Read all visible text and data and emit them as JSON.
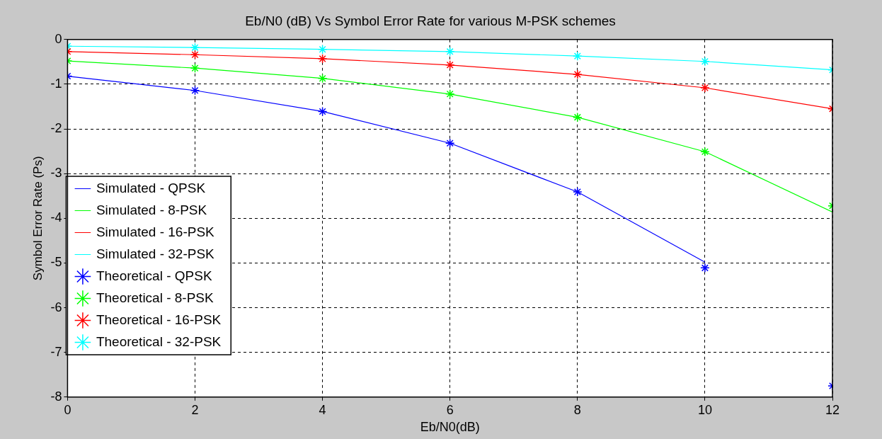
{
  "chart_data": {
    "type": "line",
    "title": "Eb/N0 (dB) Vs Symbol Error Rate for various M-PSK schemes",
    "xlabel": "Eb/N0(dB)",
    "ylabel": "Symbol Error Rate (Ps)",
    "x": [
      0,
      2,
      4,
      6,
      8,
      10,
      12
    ],
    "xlim": [
      0,
      12
    ],
    "xticks": [
      0,
      2,
      4,
      6,
      8,
      10,
      12
    ],
    "ylim": [
      -8,
      0
    ],
    "yticks": [
      -8,
      -7,
      -6,
      -5,
      -4,
      -3,
      -2,
      -1,
      0
    ],
    "grid": true,
    "legend": "bottom left",
    "series": [
      {
        "name": "Simulated - QPSK",
        "type": "line",
        "marker": "none",
        "line_style": "solid",
        "color": "#0000ff",
        "values": [
          -0.82,
          -1.14,
          -1.61,
          -2.32,
          -3.41,
          -4.98,
          null
        ]
      },
      {
        "name": "Simulated - 8-PSK",
        "type": "line",
        "marker": "none",
        "line_style": "solid",
        "color": "#00ff00",
        "values": [
          -0.48,
          -0.64,
          -0.87,
          -1.22,
          -1.74,
          -2.51,
          -3.86
        ]
      },
      {
        "name": "Simulated - 16-PSK",
        "type": "line",
        "marker": "none",
        "line_style": "solid",
        "color": "#ff0000",
        "values": [
          -0.27,
          -0.34,
          -0.43,
          -0.57,
          -0.78,
          -1.08,
          -1.55
        ]
      },
      {
        "name": "Simulated - 32-PSK",
        "type": "line",
        "marker": "none",
        "line_style": "solid",
        "color": "#00ffff",
        "values": [
          -0.15,
          -0.18,
          -0.22,
          -0.27,
          -0.37,
          -0.49,
          -0.68
        ]
      },
      {
        "name": "Theoretical - QPSK",
        "type": "scatter",
        "marker": "cross",
        "color": "#0000ff",
        "values": [
          -0.82,
          -1.14,
          -1.61,
          -2.32,
          -3.41,
          -5.11,
          -7.75
        ]
      },
      {
        "name": "Theoretical - 8-PSK",
        "type": "scatter",
        "marker": "cross",
        "color": "#00ff00",
        "values": [
          -0.48,
          -0.64,
          -0.87,
          -1.22,
          -1.74,
          -2.51,
          -3.72
        ]
      },
      {
        "name": "Theoretical - 16-PSK",
        "type": "scatter",
        "marker": "cross",
        "color": "#ff0000",
        "values": [
          -0.27,
          -0.34,
          -0.43,
          -0.57,
          -0.78,
          -1.08,
          -1.55
        ]
      },
      {
        "name": "Theoretical - 32-PSK",
        "type": "scatter",
        "marker": "cross",
        "color": "#00ffff",
        "values": [
          -0.15,
          -0.18,
          -0.22,
          -0.27,
          -0.37,
          -0.49,
          -0.68
        ]
      }
    ]
  }
}
